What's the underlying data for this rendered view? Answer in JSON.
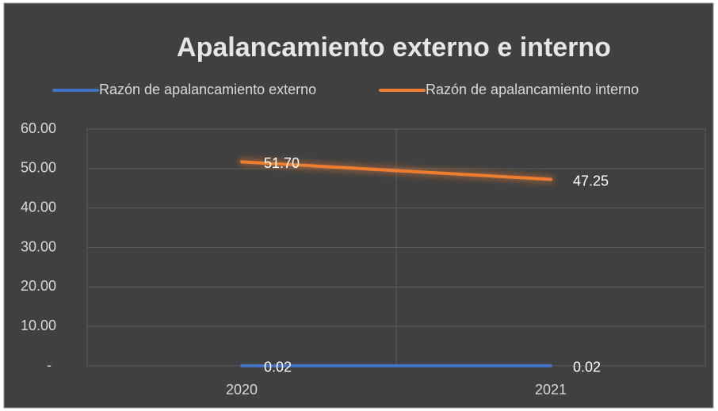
{
  "chart_data": {
    "type": "line",
    "title": "Apalancamiento externo e interno",
    "categories": [
      "2020",
      "2021"
    ],
    "series": [
      {
        "name": "Razón de apalancamiento externo",
        "color": "#4472c4",
        "values": [
          0.02,
          0.02
        ],
        "value_labels": [
          "0.02",
          "0.02"
        ]
      },
      {
        "name": "Razón de apalancamiento interno",
        "color": "#ed7d31",
        "values": [
          51.7,
          47.25
        ],
        "value_labels": [
          "51.70",
          "47.25"
        ]
      }
    ],
    "ylim": [
      0,
      60
    ],
    "yticks": [
      {
        "value": 0,
        "label": "-"
      },
      {
        "value": 10,
        "label": "10.00"
      },
      {
        "value": 20,
        "label": "20.00"
      },
      {
        "value": 30,
        "label": "30.00"
      },
      {
        "value": 40,
        "label": "40.00"
      },
      {
        "value": 50,
        "label": "50.00"
      },
      {
        "value": 60,
        "label": "60.00"
      }
    ],
    "grid": true,
    "legend": "top"
  }
}
